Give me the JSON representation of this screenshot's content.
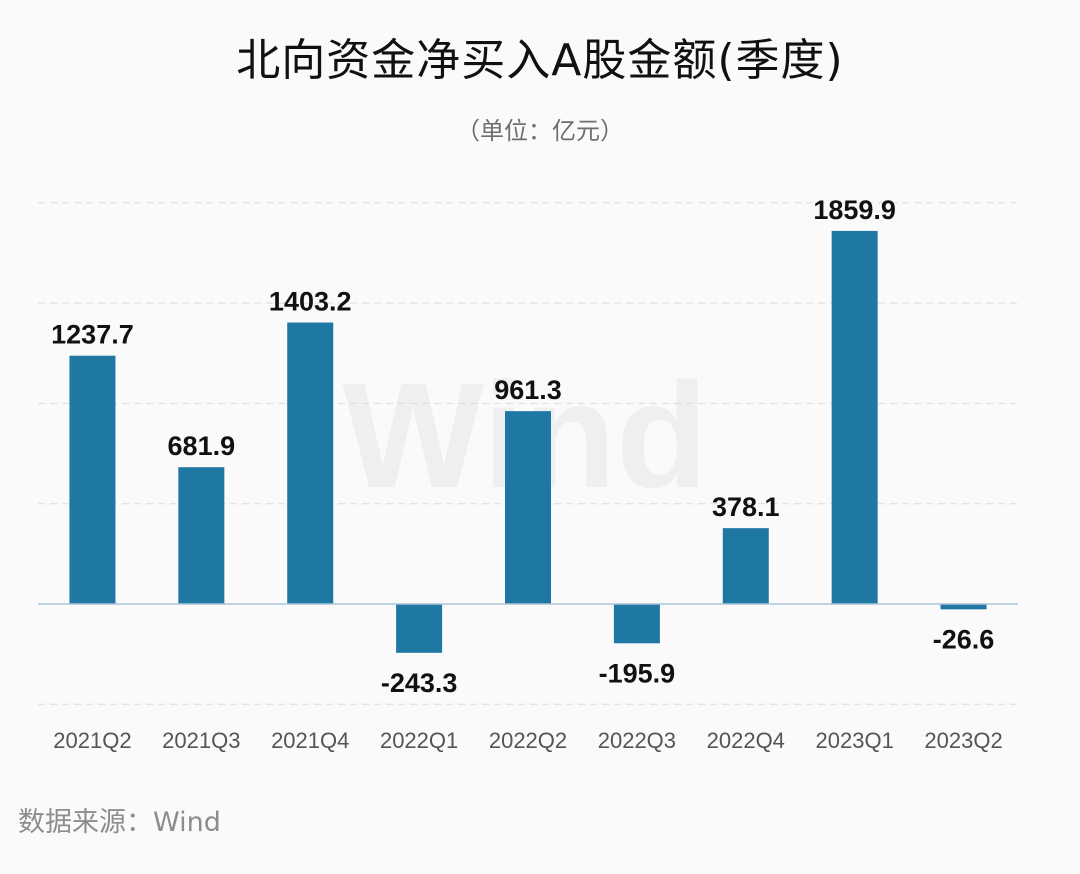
{
  "header": {
    "title": "北向资金净买入A股金额(季度)",
    "subtitle": "（单位：亿元）"
  },
  "footer": {
    "source": "数据来源：Wind"
  },
  "watermark": "Wind",
  "colors": {
    "bar": "#1f77a3",
    "gridline": "#dcdcdc",
    "baseline": "#aac4d8",
    "background": "#fafafa"
  },
  "chart_data": {
    "type": "bar",
    "categories": [
      "2021Q2",
      "2021Q3",
      "2021Q4",
      "2022Q1",
      "2022Q2",
      "2022Q3",
      "2022Q4",
      "2023Q1",
      "2023Q2"
    ],
    "values": [
      1237.7,
      681.9,
      1403.2,
      -243.3,
      961.3,
      -195.9,
      378.1,
      1859.9,
      -26.6
    ],
    "value_labels": [
      "1237.7",
      "681.9",
      "1403.2",
      "-243.3",
      "961.3",
      "-195.9",
      "378.1",
      "1859.9",
      "-26.6"
    ],
    "title": "北向资金净买入A股金额(季度)",
    "subtitle": "（单位：亿元）",
    "ylim": [
      -500,
      2000
    ],
    "grid": true,
    "legend": "none"
  }
}
